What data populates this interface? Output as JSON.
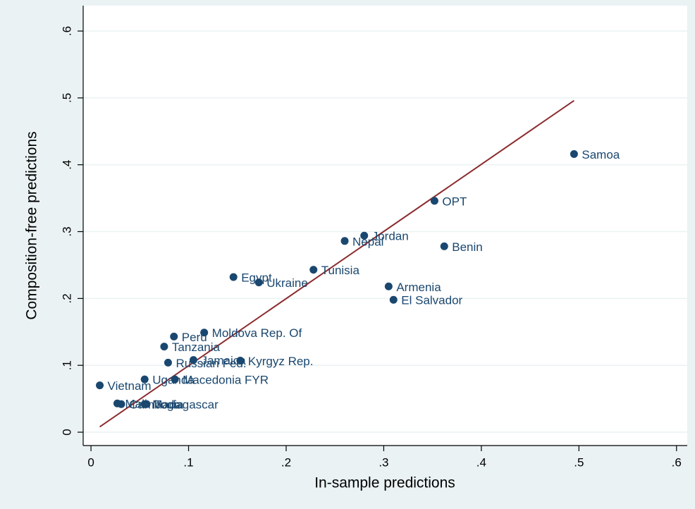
{
  "chart_data": {
    "type": "scatter",
    "x_label": "In-sample predictions",
    "y_label": "Composition-free predictions",
    "color": "#1a476f",
    "labels": [
      "Samoa",
      "OPT",
      "Benin",
      "Jordan",
      "Nepal",
      "Tunisia",
      "Armenia",
      "El Salvador",
      "Egypt",
      "Ukraine",
      "Moldova Rep. Of",
      "Peru",
      "Tanzania",
      "Jamaica",
      "Russian Fed.",
      "Kyrgyz Rep.",
      "Uganda",
      "Macedonia FYR",
      "Vietnam",
      "Mali",
      "Cambodia",
      "Madagascar",
      "Togo"
    ],
    "x": [
      0.495,
      0.352,
      0.362,
      0.28,
      0.26,
      0.228,
      0.305,
      0.31,
      0.146,
      0.172,
      0.116,
      0.085,
      0.075,
      0.105,
      0.079,
      0.153,
      0.055,
      0.086,
      0.009,
      0.027,
      0.031,
      0.055,
      0.057
    ],
    "values": [
      0.416,
      0.346,
      0.278,
      0.294,
      0.286,
      0.243,
      0.218,
      0.198,
      0.232,
      0.224,
      0.149,
      0.143,
      0.128,
      0.108,
      0.104,
      0.107,
      0.079,
      0.079,
      0.07,
      0.043,
      0.042,
      0.042,
      0.042
    ],
    "fit_line": {
      "color": "#8b2c2f",
      "x": [
        0.009,
        0.495
      ],
      "y": [
        0.008,
        0.496
      ]
    },
    "xlim": [
      -0.008,
      0.611
    ],
    "ylim": [
      -0.02,
      0.638
    ],
    "xticks": [
      0,
      {
        "value": 0.1,
        "label": ".1"
      },
      {
        "value": 0.2,
        "label": ".2"
      },
      {
        "value": 0.3,
        "label": ".3"
      },
      {
        "value": 0.4,
        "label": ".4"
      },
      {
        "value": 0.5,
        "label": ".5"
      },
      {
        "value": 0.6,
        "label": ".6"
      }
    ],
    "yticks": [
      0,
      {
        "value": 0.1,
        "label": ".1"
      },
      {
        "value": 0.2,
        "label": ".2"
      },
      {
        "value": 0.3,
        "label": ".3"
      },
      {
        "value": 0.4,
        "label": ".4"
      },
      {
        "value": 0.5,
        "label": ".5"
      },
      {
        "value": 0.6,
        "label": ".6"
      }
    ],
    "grid": true
  }
}
